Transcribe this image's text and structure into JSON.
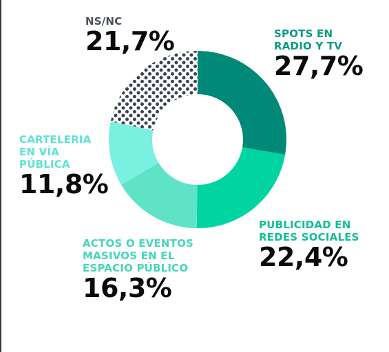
{
  "chart_data": {
    "type": "pie",
    "variant": "donut",
    "categories": [
      "SPOTS EN RADIO Y TV",
      "PUBLICIDAD EN REDES SOCIALES",
      "ACTOS O EVENTOS MASIVOS EN EL ESPACIO PÚBLICO",
      "CARTELERIA EN VÍA PÚBLICA",
      "NS/NC"
    ],
    "values": [
      27.7,
      22.4,
      16.3,
      11.8,
      21.7
    ],
    "value_labels": [
      "27,7%",
      "22,4%",
      "16,3%",
      "11,8%",
      "21,7%"
    ],
    "category_lines": [
      [
        "SPOTS EN",
        "RADIO Y TV"
      ],
      [
        "PUBLICIDAD EN",
        "REDES SOCIALES"
      ],
      [
        "ACTOS O EVENTOS",
        "MASIVOS EN EL",
        "ESPACIO PÚBLICO"
      ],
      [
        "CARTELERIA",
        "EN VÍA",
        "PÚBLICA"
      ],
      [
        "NS/NC"
      ]
    ],
    "colors": [
      "#008878",
      "#00d4a0",
      "#5fe3c6",
      "#7af0e0",
      "#3a4150"
    ],
    "label_colors": [
      "#0a9a82",
      "#10bf94",
      "#45d6b8",
      "#5de3d3",
      "#4a505a"
    ],
    "start_angle_deg": 0,
    "direction": "clockwise",
    "pattern_last_slice": "dotted"
  }
}
